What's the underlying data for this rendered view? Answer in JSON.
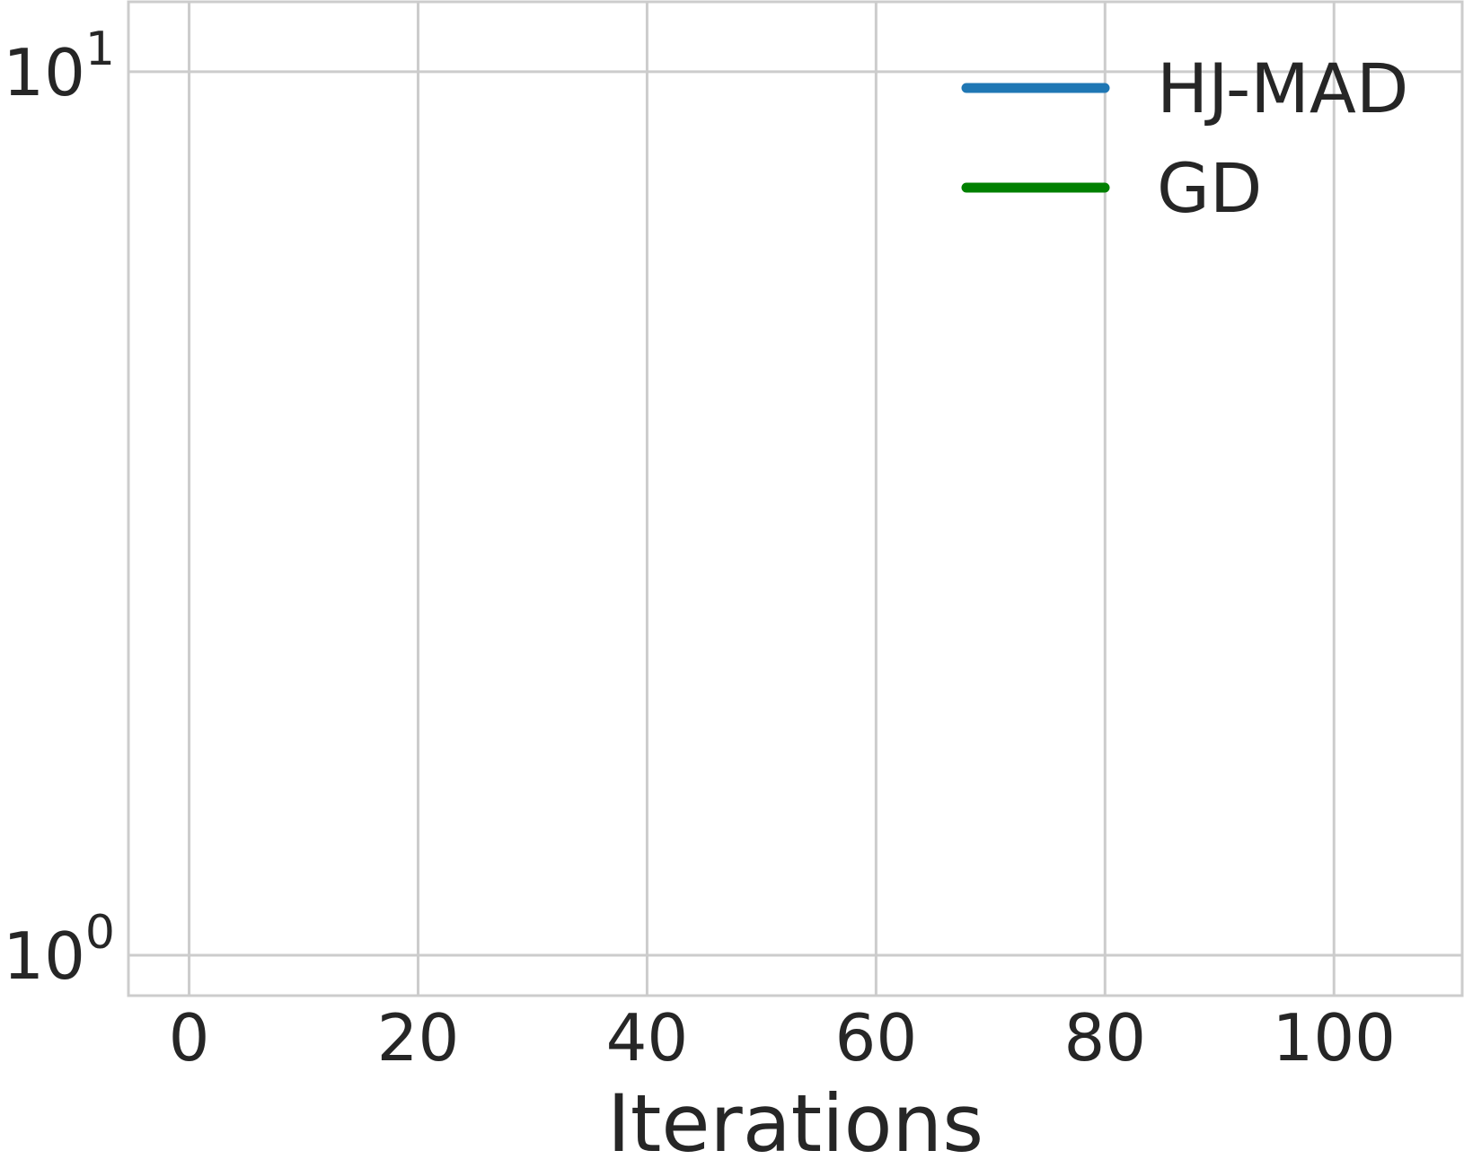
{
  "chart_data": {
    "type": "line",
    "title": "",
    "xlabel": "Iterations",
    "ylabel": "",
    "xlim": [
      -5.3,
      111.2
    ],
    "ylim": [
      0.9,
      12.0
    ],
    "yscale": "log",
    "x_ticks": [
      0,
      20,
      40,
      60,
      80,
      100
    ],
    "x_tick_labels": [
      "0",
      "20",
      "40",
      "60",
      "80",
      "100"
    ],
    "y_ticks": [
      {
        "value": 1,
        "base": "10",
        "exp": "0"
      },
      {
        "value": 10,
        "base": "10",
        "exp": "1"
      }
    ],
    "grid": true,
    "legend_position": "top-right",
    "series": [
      {
        "name": "HJ-MAD",
        "color": "#1f77b4",
        "x": [],
        "y": []
      },
      {
        "name": "GD",
        "color": "#008000",
        "x": [],
        "y": []
      }
    ]
  }
}
